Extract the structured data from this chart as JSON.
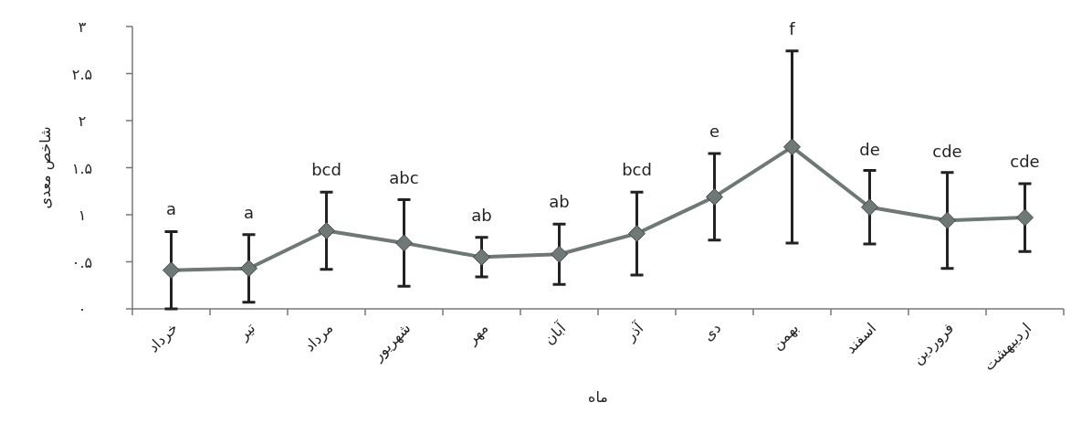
{
  "chart_data": {
    "type": "line",
    "xlabel": "ماه",
    "ylabel": "شاخص معدی",
    "categories": [
      "خرداد",
      "تیر",
      "مرداد",
      "شهریور",
      "مهر",
      "آبان",
      "آذر",
      "دی",
      "بهمن",
      "اسفند",
      "فروردین",
      "اردیبهشت"
    ],
    "series": [
      {
        "color": "#6e7876",
        "values": [
          0.41,
          0.43,
          0.83,
          0.7,
          0.55,
          0.58,
          0.8,
          1.19,
          1.72,
          1.08,
          0.94,
          0.97
        ],
        "errors": [
          0.41,
          0.36,
          0.41,
          0.46,
          0.21,
          0.32,
          0.44,
          0.46,
          1.02,
          0.39,
          0.51,
          0.36
        ]
      }
    ],
    "ylim": [
      0,
      3
    ],
    "yticks": [
      {
        "value": 0,
        "label": "۰"
      },
      {
        "value": 0.5,
        "label": "۰.۵"
      },
      {
        "value": 1,
        "label": "۱"
      },
      {
        "value": 1.5,
        "label": "۱.۵"
      },
      {
        "value": 2,
        "label": "۲"
      },
      {
        "value": 2.5,
        "label": "۲.۵"
      },
      {
        "value": 3,
        "label": "۳"
      }
    ],
    "marker": "diamond",
    "line_style": "solid",
    "annotations": [
      {
        "text": "a",
        "x": "خرداد",
        "y": 0.83
      },
      {
        "text": "a",
        "x": "تیر",
        "y": 0.79
      },
      {
        "text": "bcd",
        "x": "مرداد",
        "y": 1.24
      },
      {
        "text": "abc",
        "x": "شهریور",
        "y": 1.16
      },
      {
        "text": "ab",
        "x": "مهر",
        "y": 0.76
      },
      {
        "text": "ab",
        "x": "آبان",
        "y": 0.9
      },
      {
        "text": "bcd",
        "x": "آذر",
        "y": 1.24
      },
      {
        "text": "e",
        "x": "دی",
        "y": 1.65
      },
      {
        "text": "f",
        "x": "بهمن",
        "y": 2.74
      },
      {
        "text": "de",
        "x": "اسفند",
        "y": 1.46
      },
      {
        "text": "cde",
        "x": "فروردین",
        "y": 1.44
      },
      {
        "text": "cde",
        "x": "اردیبهشت",
        "y": 1.33
      }
    ]
  }
}
